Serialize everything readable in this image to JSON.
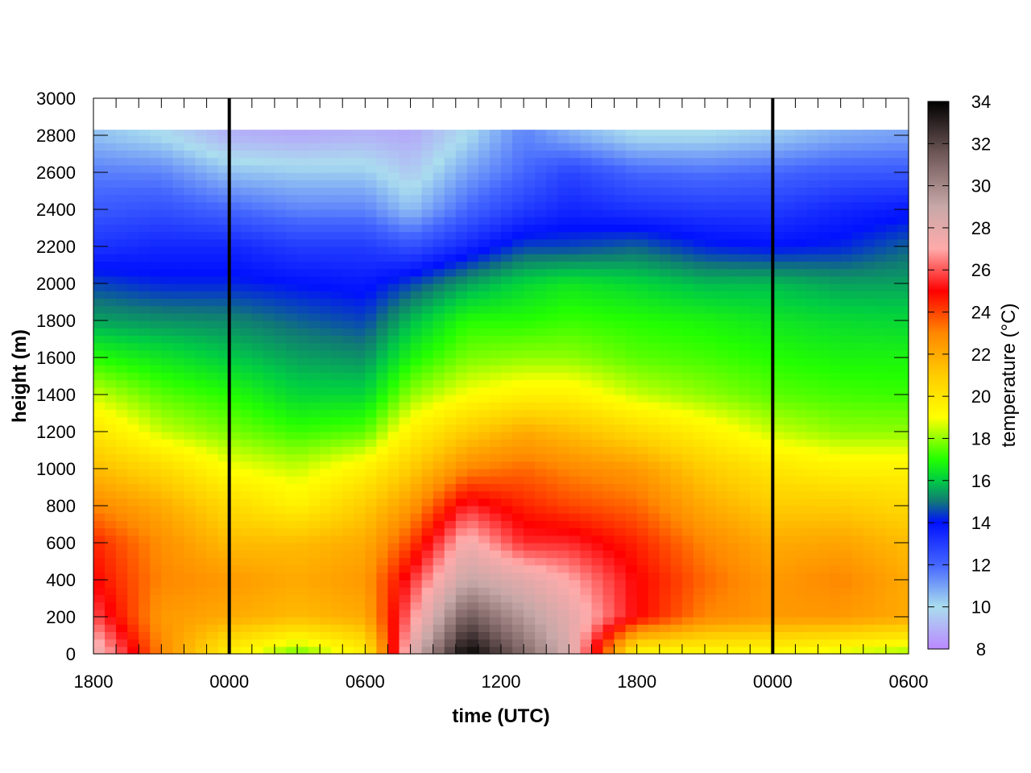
{
  "chart_data": {
    "type": "heatmap",
    "title": "",
    "xlabel": "time (UTC)",
    "ylabel": "height (m)",
    "x_tick_labels": [
      "1800",
      "0000",
      "0600",
      "1200",
      "1800",
      "0000",
      "0600"
    ],
    "y_tick_labels": [
      "0",
      "200",
      "400",
      "600",
      "800",
      "1000",
      "1200",
      "1400",
      "1600",
      "1800",
      "2000",
      "2200",
      "2400",
      "2600",
      "2800",
      "3000"
    ],
    "x_range_hours": [
      0,
      36
    ],
    "ylim": [
      0,
      3000
    ],
    "data_top_height_m": 2830,
    "vertical_markers": [
      "0000",
      "0000"
    ],
    "vertical_marker_hours": [
      6,
      30
    ],
    "colorbar": {
      "label": "temperature (°C)",
      "range": [
        8,
        34
      ],
      "tick_labels": [
        "8",
        "10",
        "12",
        "14",
        "16",
        "18",
        "20",
        "22",
        "24",
        "26",
        "28",
        "30",
        "32",
        "34"
      ],
      "color_stops": [
        {
          "value": 8,
          "color": "#bb88ff"
        },
        {
          "value": 10,
          "color": "#aaddee"
        },
        {
          "value": 12,
          "color": "#4466ff"
        },
        {
          "value": 14,
          "color": "#0011ff"
        },
        {
          "value": 15,
          "color": "#117777"
        },
        {
          "value": 16,
          "color": "#00cc44"
        },
        {
          "value": 17,
          "color": "#22ff00"
        },
        {
          "value": 19,
          "color": "#ffff00"
        },
        {
          "value": 21,
          "color": "#ffcc00"
        },
        {
          "value": 23,
          "color": "#ff8800"
        },
        {
          "value": 25,
          "color": "#ff0000"
        },
        {
          "value": 27,
          "color": "#ffaaaa"
        },
        {
          "value": 29,
          "color": "#c8a8a8"
        },
        {
          "value": 31.5,
          "color": "#705858"
        },
        {
          "value": 34,
          "color": "#000000"
        }
      ]
    },
    "temperature_profiles": [
      {
        "time_hours": 0,
        "temperatures_c": [
          [
            0,
            28
          ],
          [
            200,
            26
          ],
          [
            400,
            25
          ],
          [
            600,
            24.5
          ],
          [
            800,
            23
          ],
          [
            1000,
            21.5
          ],
          [
            1200,
            20
          ],
          [
            1400,
            18.5
          ],
          [
            1600,
            17
          ],
          [
            1800,
            15.5
          ],
          [
            2000,
            14.5
          ],
          [
            2200,
            13.2
          ],
          [
            2400,
            12.3
          ],
          [
            2600,
            11.6
          ],
          [
            2800,
            10.5
          ]
        ]
      },
      {
        "time_hours": 3,
        "temperatures_c": [
          [
            0,
            23
          ],
          [
            200,
            22.5
          ],
          [
            400,
            23
          ],
          [
            600,
            22.8
          ],
          [
            800,
            22
          ],
          [
            1000,
            20.5
          ],
          [
            1200,
            18.5
          ],
          [
            1400,
            17.5
          ],
          [
            1600,
            16.5
          ],
          [
            1800,
            15.3
          ],
          [
            2000,
            14.2
          ],
          [
            2200,
            13.5
          ],
          [
            2400,
            12.5
          ],
          [
            2600,
            11.5
          ],
          [
            2800,
            10
          ]
        ]
      },
      {
        "time_hours": 6,
        "temperatures_c": [
          [
            0,
            19.5
          ],
          [
            200,
            22
          ],
          [
            400,
            22.5
          ],
          [
            600,
            21.5
          ],
          [
            800,
            20.5
          ],
          [
            1000,
            19
          ],
          [
            1200,
            17.8
          ],
          [
            1400,
            17
          ],
          [
            1600,
            16
          ],
          [
            1800,
            15.2
          ],
          [
            2000,
            14.2
          ],
          [
            2200,
            13.5
          ],
          [
            2400,
            12
          ],
          [
            2600,
            10.5
          ],
          [
            2800,
            9
          ]
        ]
      },
      {
        "time_hours": 9,
        "temperatures_c": [
          [
            0,
            17.5
          ],
          [
            200,
            21.5
          ],
          [
            400,
            22
          ],
          [
            600,
            21.5
          ],
          [
            800,
            19.5
          ],
          [
            1000,
            18.5
          ],
          [
            1200,
            17.2
          ],
          [
            1400,
            16.2
          ],
          [
            1600,
            15.5
          ],
          [
            1800,
            14.8
          ],
          [
            2000,
            14
          ],
          [
            2200,
            13
          ],
          [
            2400,
            11.5
          ],
          [
            2600,
            10.3
          ],
          [
            2800,
            8.8
          ]
        ]
      },
      {
        "time_hours": 12,
        "temperatures_c": [
          [
            0,
            19.5
          ],
          [
            200,
            22
          ],
          [
            400,
            22.5
          ],
          [
            600,
            22
          ],
          [
            800,
            21
          ],
          [
            1000,
            19.5
          ],
          [
            1200,
            17.5
          ],
          [
            1400,
            16.2
          ],
          [
            1600,
            15.3
          ],
          [
            1800,
            14.5
          ],
          [
            2000,
            13.8
          ],
          [
            2200,
            13
          ],
          [
            2400,
            11.5
          ],
          [
            2600,
            10.3
          ],
          [
            2800,
            9
          ]
        ]
      },
      {
        "time_hours": 14,
        "temperatures_c": [
          [
            0,
            28
          ],
          [
            200,
            26.5
          ],
          [
            400,
            25.5
          ],
          [
            600,
            24
          ],
          [
            800,
            22.5
          ],
          [
            1000,
            21
          ],
          [
            1200,
            19.5
          ],
          [
            1400,
            18
          ],
          [
            1600,
            16.8
          ],
          [
            1800,
            15.8
          ],
          [
            2000,
            14.5
          ],
          [
            2200,
            12.5
          ],
          [
            2400,
            10.5
          ],
          [
            2600,
            9.5
          ],
          [
            2800,
            8.8
          ]
        ]
      },
      {
        "time_hours": 16.5,
        "temperatures_c": [
          [
            0,
            34
          ],
          [
            200,
            31.5
          ],
          [
            400,
            29
          ],
          [
            600,
            27.5
          ],
          [
            800,
            25.5
          ],
          [
            1000,
            23
          ],
          [
            1200,
            21
          ],
          [
            1400,
            19
          ],
          [
            1600,
            17.8
          ],
          [
            1800,
            17
          ],
          [
            2000,
            15.5
          ],
          [
            2200,
            13.5
          ],
          [
            2400,
            12
          ],
          [
            2600,
            11
          ],
          [
            2800,
            10
          ]
        ]
      },
      {
        "time_hours": 19,
        "temperatures_c": [
          [
            0,
            31
          ],
          [
            200,
            29.5
          ],
          [
            400,
            28
          ],
          [
            600,
            25.5
          ],
          [
            800,
            24.5
          ],
          [
            1000,
            23.5
          ],
          [
            1200,
            22
          ],
          [
            1400,
            19.5
          ],
          [
            1600,
            18
          ],
          [
            1800,
            17
          ],
          [
            2000,
            16.2
          ],
          [
            2200,
            14.5
          ],
          [
            2400,
            13
          ],
          [
            2600,
            12
          ],
          [
            2800,
            11.5
          ]
        ]
      },
      {
        "time_hours": 21,
        "temperatures_c": [
          [
            0,
            28.5
          ],
          [
            200,
            28
          ],
          [
            400,
            27
          ],
          [
            600,
            25.5
          ],
          [
            800,
            24
          ],
          [
            1000,
            23
          ],
          [
            1200,
            21.5
          ],
          [
            1400,
            19.5
          ],
          [
            1600,
            18
          ],
          [
            1800,
            17.2
          ],
          [
            2000,
            16.5
          ],
          [
            2200,
            14.5
          ],
          [
            2400,
            13.5
          ],
          [
            2600,
            12.8
          ],
          [
            2800,
            10.8
          ]
        ]
      },
      {
        "time_hours": 24,
        "temperatures_c": [
          [
            0,
            19
          ],
          [
            200,
            25
          ],
          [
            400,
            25
          ],
          [
            600,
            24.5
          ],
          [
            800,
            23.5
          ],
          [
            1000,
            22.5
          ],
          [
            1200,
            20.5
          ],
          [
            1400,
            18.5
          ],
          [
            1600,
            17.5
          ],
          [
            1800,
            17
          ],
          [
            2000,
            16.2
          ],
          [
            2200,
            14.8
          ],
          [
            2400,
            13.2
          ],
          [
            2600,
            12
          ],
          [
            2800,
            10
          ]
        ]
      },
      {
        "time_hours": 27,
        "temperatures_c": [
          [
            0,
            19
          ],
          [
            200,
            23
          ],
          [
            400,
            23.5
          ],
          [
            600,
            23
          ],
          [
            800,
            22
          ],
          [
            1000,
            21
          ],
          [
            1200,
            19.5
          ],
          [
            1400,
            18
          ],
          [
            1600,
            17.3
          ],
          [
            1800,
            16.8
          ],
          [
            2000,
            15.8
          ],
          [
            2200,
            14.2
          ],
          [
            2400,
            13
          ],
          [
            2600,
            11.8
          ],
          [
            2800,
            10
          ]
        ]
      },
      {
        "time_hours": 30,
        "temperatures_c": [
          [
            0,
            19
          ],
          [
            200,
            22.5
          ],
          [
            400,
            22.5
          ],
          [
            600,
            22
          ],
          [
            800,
            21
          ],
          [
            1000,
            20
          ],
          [
            1200,
            18.5
          ],
          [
            1400,
            17.5
          ],
          [
            1600,
            17
          ],
          [
            1800,
            16.5
          ],
          [
            2000,
            15.8
          ],
          [
            2200,
            14
          ],
          [
            2400,
            13
          ],
          [
            2600,
            12
          ],
          [
            2800,
            10.3
          ]
        ]
      },
      {
        "time_hours": 33,
        "temperatures_c": [
          [
            0,
            18.5
          ],
          [
            200,
            22.5
          ],
          [
            400,
            23
          ],
          [
            600,
            22.2
          ],
          [
            800,
            21
          ],
          [
            1000,
            19.5
          ],
          [
            1200,
            18
          ],
          [
            1400,
            17.3
          ],
          [
            1600,
            16.8
          ],
          [
            1800,
            16.3
          ],
          [
            2000,
            15.5
          ],
          [
            2200,
            14.2
          ],
          [
            2400,
            13.5
          ],
          [
            2600,
            12.3
          ],
          [
            2800,
            10.8
          ]
        ]
      },
      {
        "time_hours": 36,
        "temperatures_c": [
          [
            0,
            18
          ],
          [
            200,
            22
          ],
          [
            400,
            22
          ],
          [
            600,
            21.5
          ],
          [
            800,
            20.5
          ],
          [
            1000,
            19.5
          ],
          [
            1200,
            18
          ],
          [
            1400,
            17.2
          ],
          [
            1600,
            16.8
          ],
          [
            1800,
            16.2
          ],
          [
            2000,
            15.5
          ],
          [
            2200,
            14.8
          ],
          [
            2400,
            13.8
          ],
          [
            2600,
            12.3
          ],
          [
            2800,
            11
          ]
        ]
      }
    ]
  }
}
